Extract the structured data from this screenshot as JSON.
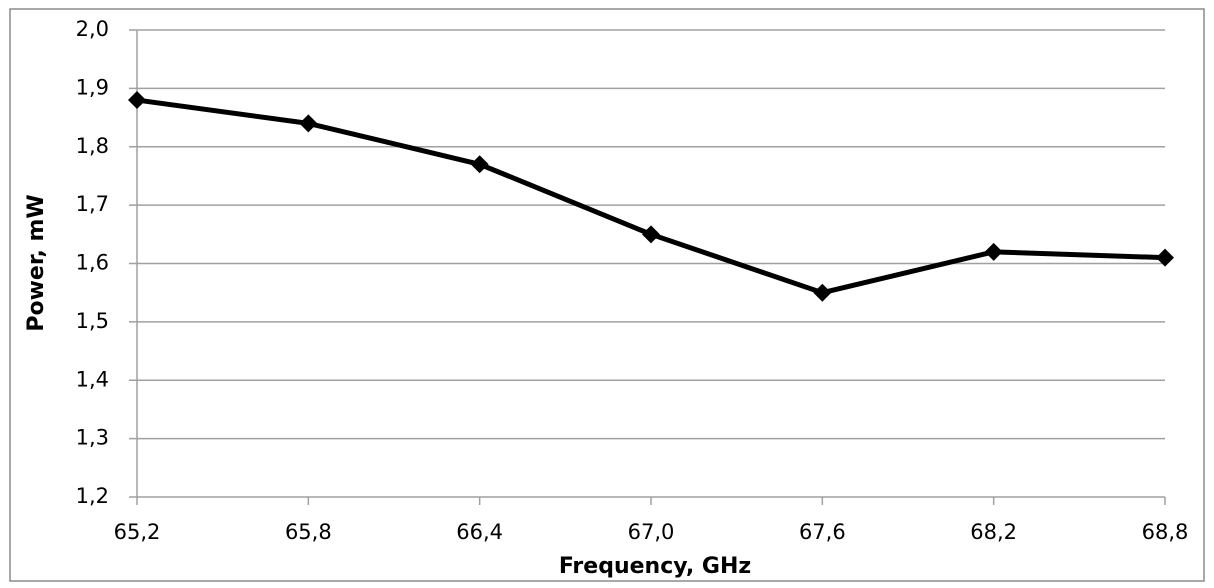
{
  "chart_data": {
    "type": "line",
    "x_label": "Frequency, GHz",
    "y_label": "Power, mW",
    "x": [
      65.2,
      65.8,
      66.4,
      67.0,
      67.6,
      68.2,
      68.8
    ],
    "values": [
      1.88,
      1.84,
      1.77,
      1.65,
      1.55,
      1.62,
      1.61
    ],
    "color": "#000000",
    "xlim": [
      65.2,
      68.8
    ],
    "xticks": [
      {
        "value": 65.2,
        "label": "65,2"
      },
      {
        "value": 65.8,
        "label": "65,8"
      },
      {
        "value": 66.4,
        "label": "66,4"
      },
      {
        "value": 67.0,
        "label": "67,0"
      },
      {
        "value": 67.6,
        "label": "67,6"
      },
      {
        "value": 68.2,
        "label": "68,2"
      },
      {
        "value": 68.8,
        "label": "68,8"
      }
    ],
    "ylim": [
      1.2,
      2.0
    ],
    "yticks": [
      {
        "value": 1.2,
        "label": "1,2"
      },
      {
        "value": 1.3,
        "label": "1,3"
      },
      {
        "value": 1.4,
        "label": "1,4"
      },
      {
        "value": 1.5,
        "label": "1,5"
      },
      {
        "value": 1.6,
        "label": "1,6"
      },
      {
        "value": 1.7,
        "label": "1,7"
      },
      {
        "value": 1.8,
        "label": "1,8"
      },
      {
        "value": 1.9,
        "label": "1,9"
      },
      {
        "value": 2.0,
        "label": "2,0"
      }
    ],
    "grid": true
  }
}
